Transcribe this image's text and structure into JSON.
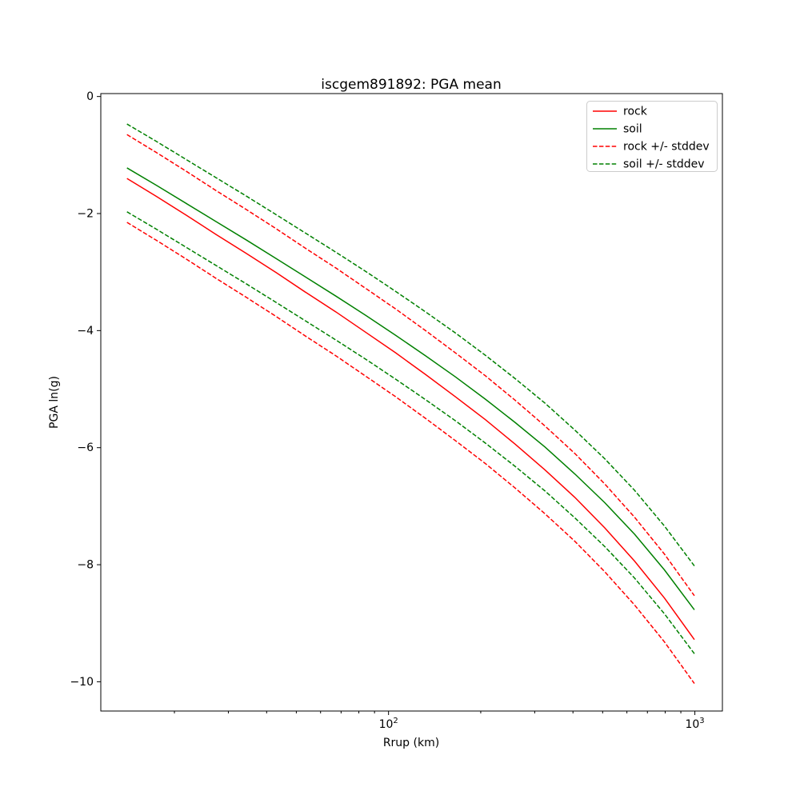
{
  "chart_data": {
    "type": "line",
    "title": "iscgem891892: PGA mean",
    "xlabel": "Rrup (km)",
    "ylabel": "PGA ln(g)",
    "x_scale": "log",
    "legend_position": "upper right",
    "grid": false,
    "axes": {
      "xlim": [
        11.5,
        1230
      ],
      "ylim": [
        -10.5,
        0.05
      ],
      "x_major_ticks": [
        {
          "v": 100,
          "base": "10",
          "exp": "2"
        },
        {
          "v": 1000,
          "base": "10",
          "exp": "3"
        }
      ],
      "x_minor_ticks": [
        20,
        30,
        40,
        50,
        60,
        70,
        80,
        90,
        200,
        300,
        400,
        500,
        600,
        700,
        800,
        900
      ],
      "y_ticks": [
        {
          "v": 0,
          "label": "0"
        },
        {
          "v": -2,
          "label": "−2"
        },
        {
          "v": -4,
          "label": "−4"
        },
        {
          "v": -6,
          "label": "−6"
        },
        {
          "v": -8,
          "label": "−8"
        },
        {
          "v": -10,
          "label": "−10"
        }
      ]
    },
    "x": [
      14.0,
      17.5,
      21.9,
      27.4,
      34.3,
      43.0,
      53.8,
      67.3,
      84.3,
      105.5,
      132.1,
      165.3,
      206.9,
      259.0,
      324.2,
      405.8,
      508.0,
      635.9,
      795.9,
      996.3
    ],
    "stddev": 0.75,
    "series": [
      {
        "name": "rock",
        "color": "#ff0000",
        "style": "solid",
        "values": [
          -1.4,
          -1.71,
          -2.03,
          -2.36,
          -2.68,
          -3.01,
          -3.35,
          -3.68,
          -4.03,
          -4.38,
          -4.75,
          -5.13,
          -5.52,
          -5.94,
          -6.38,
          -6.85,
          -7.37,
          -7.94,
          -8.57,
          -9.28
        ]
      },
      {
        "name": "soil",
        "color": "#008000",
        "style": "solid",
        "values": [
          -1.22,
          -1.52,
          -1.83,
          -2.14,
          -2.45,
          -2.77,
          -3.09,
          -3.41,
          -3.74,
          -4.08,
          -4.43,
          -4.79,
          -5.17,
          -5.57,
          -5.99,
          -6.45,
          -6.94,
          -7.48,
          -8.09,
          -8.77
        ]
      },
      {
        "name": "rock +/- stddev",
        "color": "#ff0000",
        "style": "dashed",
        "upper": [
          -0.65,
          -0.96,
          -1.28,
          -1.61,
          -1.93,
          -2.26,
          -2.6,
          -2.93,
          -3.28,
          -3.63,
          -4.0,
          -4.38,
          -4.77,
          -5.19,
          -5.63,
          -6.1,
          -6.62,
          -7.19,
          -7.82,
          -8.53
        ],
        "lower": [
          -2.15,
          -2.46,
          -2.78,
          -3.11,
          -3.43,
          -3.76,
          -4.1,
          -4.43,
          -4.78,
          -5.13,
          -5.5,
          -5.88,
          -6.27,
          -6.69,
          -7.13,
          -7.6,
          -8.12,
          -8.69,
          -9.32,
          -10.03
        ]
      },
      {
        "name": "soil +/- stddev",
        "color": "#008000",
        "style": "dashed",
        "upper": [
          -0.47,
          -0.77,
          -1.08,
          -1.39,
          -1.7,
          -2.02,
          -2.34,
          -2.66,
          -2.99,
          -3.33,
          -3.68,
          -4.04,
          -4.42,
          -4.82,
          -5.24,
          -5.7,
          -6.19,
          -6.73,
          -7.34,
          -8.02
        ],
        "lower": [
          -1.97,
          -2.27,
          -2.58,
          -2.89,
          -3.2,
          -3.52,
          -3.84,
          -4.16,
          -4.49,
          -4.83,
          -5.18,
          -5.54,
          -5.92,
          -6.32,
          -6.74,
          -7.2,
          -7.69,
          -8.23,
          -8.84,
          -9.52
        ]
      }
    ]
  }
}
